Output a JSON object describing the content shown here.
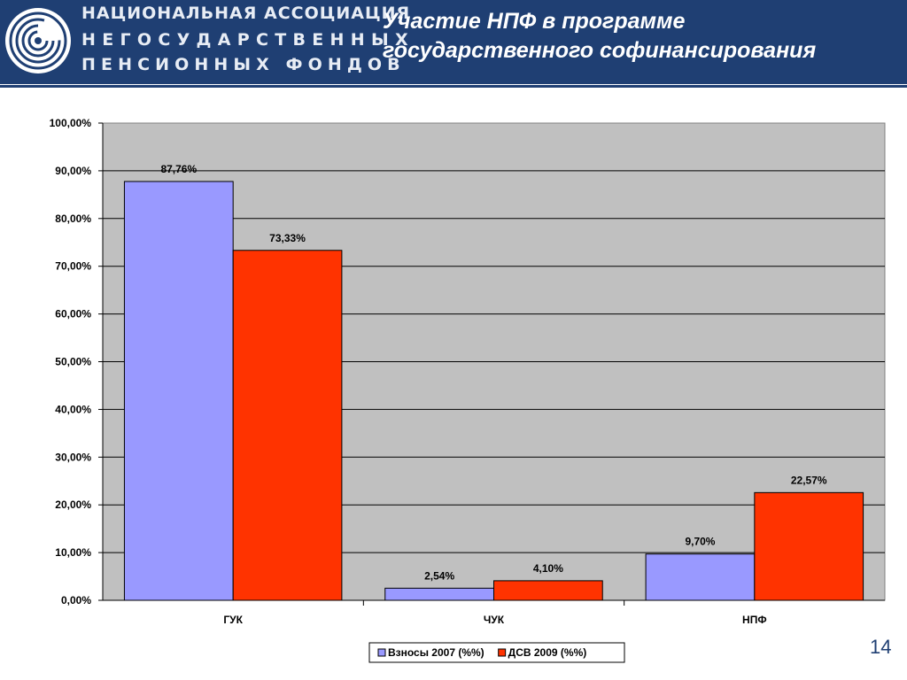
{
  "header": {
    "org_name": [
      "НАЦИОНАЛЬНАЯ АССОЦИАЦИЯ",
      "НЕГОСУДАРСТВЕННЫХ",
      "ПЕНСИОННЫХ ФОНДОВ"
    ],
    "logo_icon": "spiral-logo-icon",
    "background": "#1f3f73"
  },
  "slide": {
    "title_line1": "Участие НПФ в программе",
    "title_line2": "государственного софинансирования",
    "page_number": "14"
  },
  "chart_data": {
    "type": "bar",
    "categories": [
      "ГУК",
      "ЧУК",
      "НПФ"
    ],
    "series": [
      {
        "name": "Взносы 2007 (%%)",
        "values": [
          87.76,
          2.54,
          9.7
        ],
        "labels": [
          "87,76%",
          "2,54%",
          "9,70%"
        ],
        "color": "#9999ff"
      },
      {
        "name": "ДСВ 2009 (%%)",
        "values": [
          73.33,
          4.1,
          22.57
        ],
        "labels": [
          "73,33%",
          "4,10%",
          "22,57%"
        ],
        "color": "#ff3300"
      }
    ],
    "ylim": [
      0,
      100
    ],
    "yticks": [
      0,
      10,
      20,
      30,
      40,
      50,
      60,
      70,
      80,
      90,
      100
    ],
    "ytick_labels": [
      "0,00%",
      "10,00%",
      "20,00%",
      "30,00%",
      "40,00%",
      "50,00%",
      "60,00%",
      "70,00%",
      "80,00%",
      "90,00%",
      "100,00%"
    ],
    "grid": true,
    "plot_background": "#c0c0c0",
    "legend_position": "bottom"
  }
}
